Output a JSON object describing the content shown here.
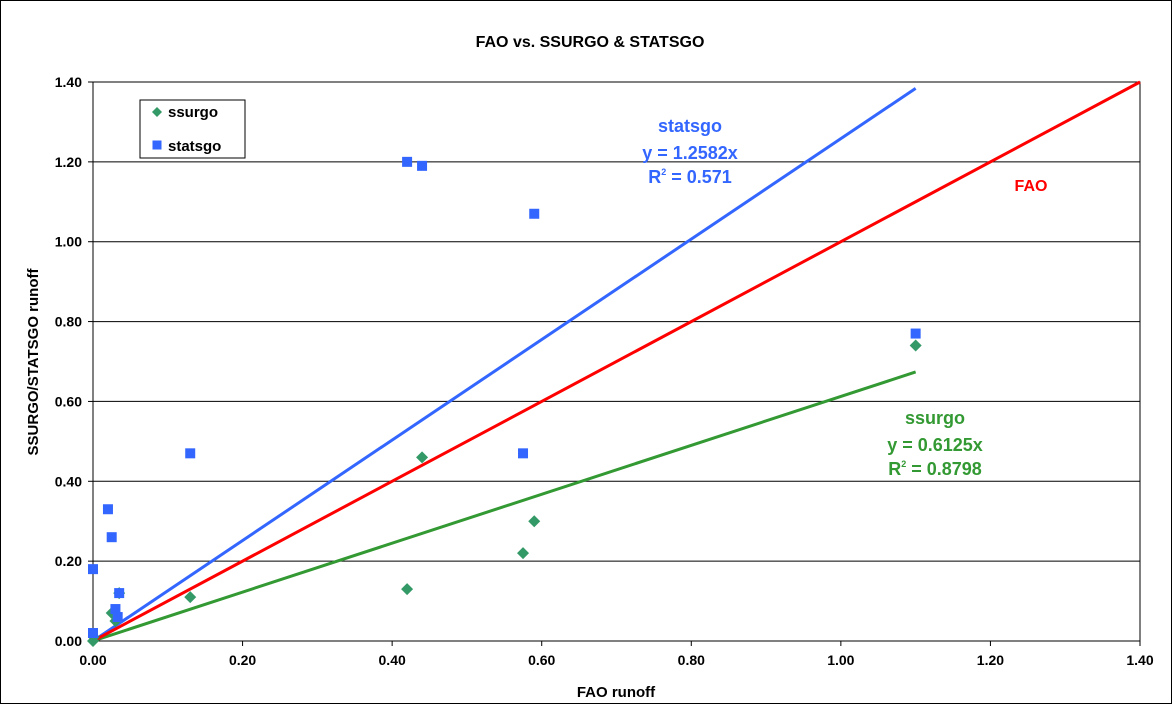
{
  "chart_data": {
    "type": "scatter",
    "title": "FAO vs. SSURGO & STATSGO",
    "xlabel": "FAO runoff",
    "ylabel": "SSURGO/STATSGO runoff",
    "xlim": [
      0,
      1.4
    ],
    "ylim": [
      0,
      1.4
    ],
    "x_ticks": [
      "0.00",
      "0.20",
      "0.40",
      "0.60",
      "0.80",
      "1.00",
      "1.20",
      "1.40"
    ],
    "y_ticks": [
      "0.00",
      "0.20",
      "0.40",
      "0.60",
      "0.80",
      "1.00",
      "1.20",
      "1.40"
    ],
    "grid": "horizontal",
    "legend_placement": "top-left",
    "series": [
      {
        "name": "ssurgo",
        "marker": "diamond",
        "color": "#339966",
        "points": [
          [
            0.0,
            0.0
          ],
          [
            0.001,
            0.01
          ],
          [
            0.025,
            0.07
          ],
          [
            0.03,
            0.05
          ],
          [
            0.035,
            0.12
          ],
          [
            0.13,
            0.11
          ],
          [
            0.42,
            0.13
          ],
          [
            0.44,
            0.46
          ],
          [
            0.575,
            0.22
          ],
          [
            0.59,
            0.3
          ],
          [
            1.1,
            0.74
          ]
        ]
      },
      {
        "name": "statsgo",
        "marker": "square",
        "color": "#3366ff",
        "points": [
          [
            0.0,
            0.18
          ],
          [
            0.0,
            0.02
          ],
          [
            0.02,
            0.33
          ],
          [
            0.025,
            0.26
          ],
          [
            0.03,
            0.08
          ],
          [
            0.033,
            0.06
          ],
          [
            0.035,
            0.12
          ],
          [
            0.13,
            0.47
          ],
          [
            0.42,
            1.2
          ],
          [
            0.44,
            1.19
          ],
          [
            0.575,
            0.47
          ],
          [
            0.59,
            1.07
          ],
          [
            1.1,
            0.77
          ]
        ]
      }
    ],
    "trendlines": [
      {
        "name": "statsgo",
        "slope": 1.2582,
        "x_range": [
          0,
          1.1
        ],
        "color": "#3366ff",
        "equation": "y = 1.2582x",
        "r2_label": "R",
        "r2_value": " = 0.571"
      },
      {
        "name": "ssurgo",
        "slope": 0.6125,
        "x_range": [
          0,
          1.1
        ],
        "color": "#339933",
        "equation": "y = 0.6125x",
        "r2_label": "R",
        "r2_value": " = 0.8798"
      },
      {
        "name": "FAO",
        "slope": 1.0,
        "x_range": [
          0,
          1.4
        ],
        "color": "#ff0000"
      }
    ],
    "annotations": {
      "statsgo": {
        "label": "statsgo",
        "equation": "y = 1.2582x",
        "r2_label": "R",
        "r2_sup": "2",
        "r2_value": " = 0.571"
      },
      "ssurgo": {
        "label": "ssurgo",
        "equation": "y = 0.6125x",
        "r2_label": "R",
        "r2_sup": "2",
        "r2_value": " = 0.8798"
      },
      "fao": {
        "label": "FAO"
      }
    },
    "legend": [
      {
        "label": "ssurgo",
        "marker": "diamond",
        "color": "#339966"
      },
      {
        "label": "statsgo",
        "marker": "square",
        "color": "#3366ff"
      }
    ]
  }
}
